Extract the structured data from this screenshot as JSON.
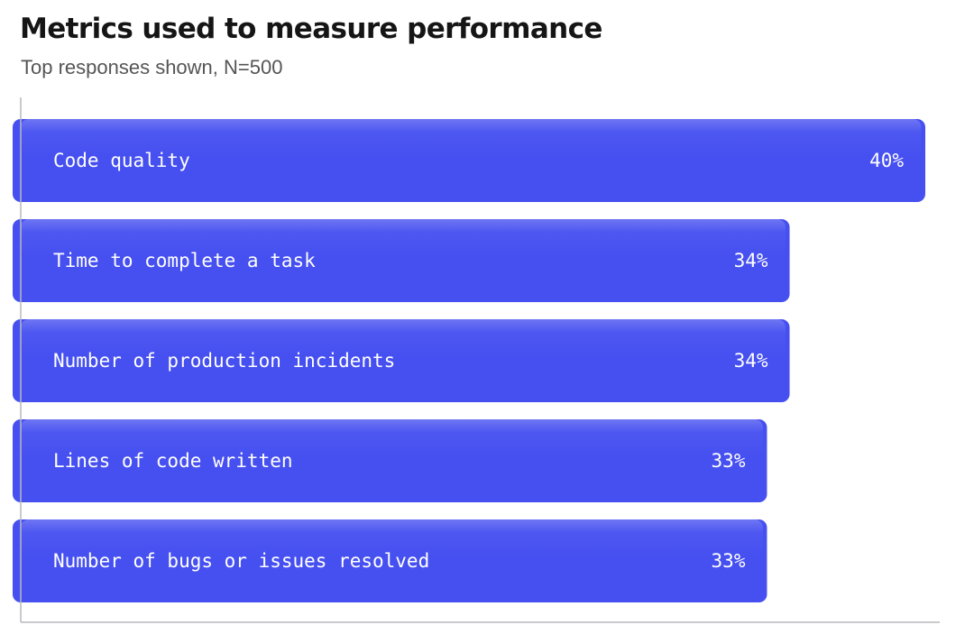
{
  "chart_data": {
    "type": "bar",
    "orientation": "horizontal",
    "title": "Metrics used to measure performance",
    "subtitle": "Top responses shown, N=500",
    "categories": [
      "Code quality",
      "Time to complete a task",
      "Number of production incidents",
      "Lines of code written",
      "Number of bugs or issues resolved"
    ],
    "values": [
      40,
      34,
      34,
      33,
      33
    ],
    "value_labels": [
      "40%",
      "34%",
      "34%",
      "33%",
      "33%"
    ],
    "unit": "%",
    "xlim": [
      0,
      40
    ],
    "grid": false,
    "legend": "none",
    "colors": {
      "bar": "#4650f0",
      "bar_highlight": "#6a74f6",
      "axis": "#b7b9be",
      "title": "#151515",
      "subtitle": "#555555"
    }
  }
}
